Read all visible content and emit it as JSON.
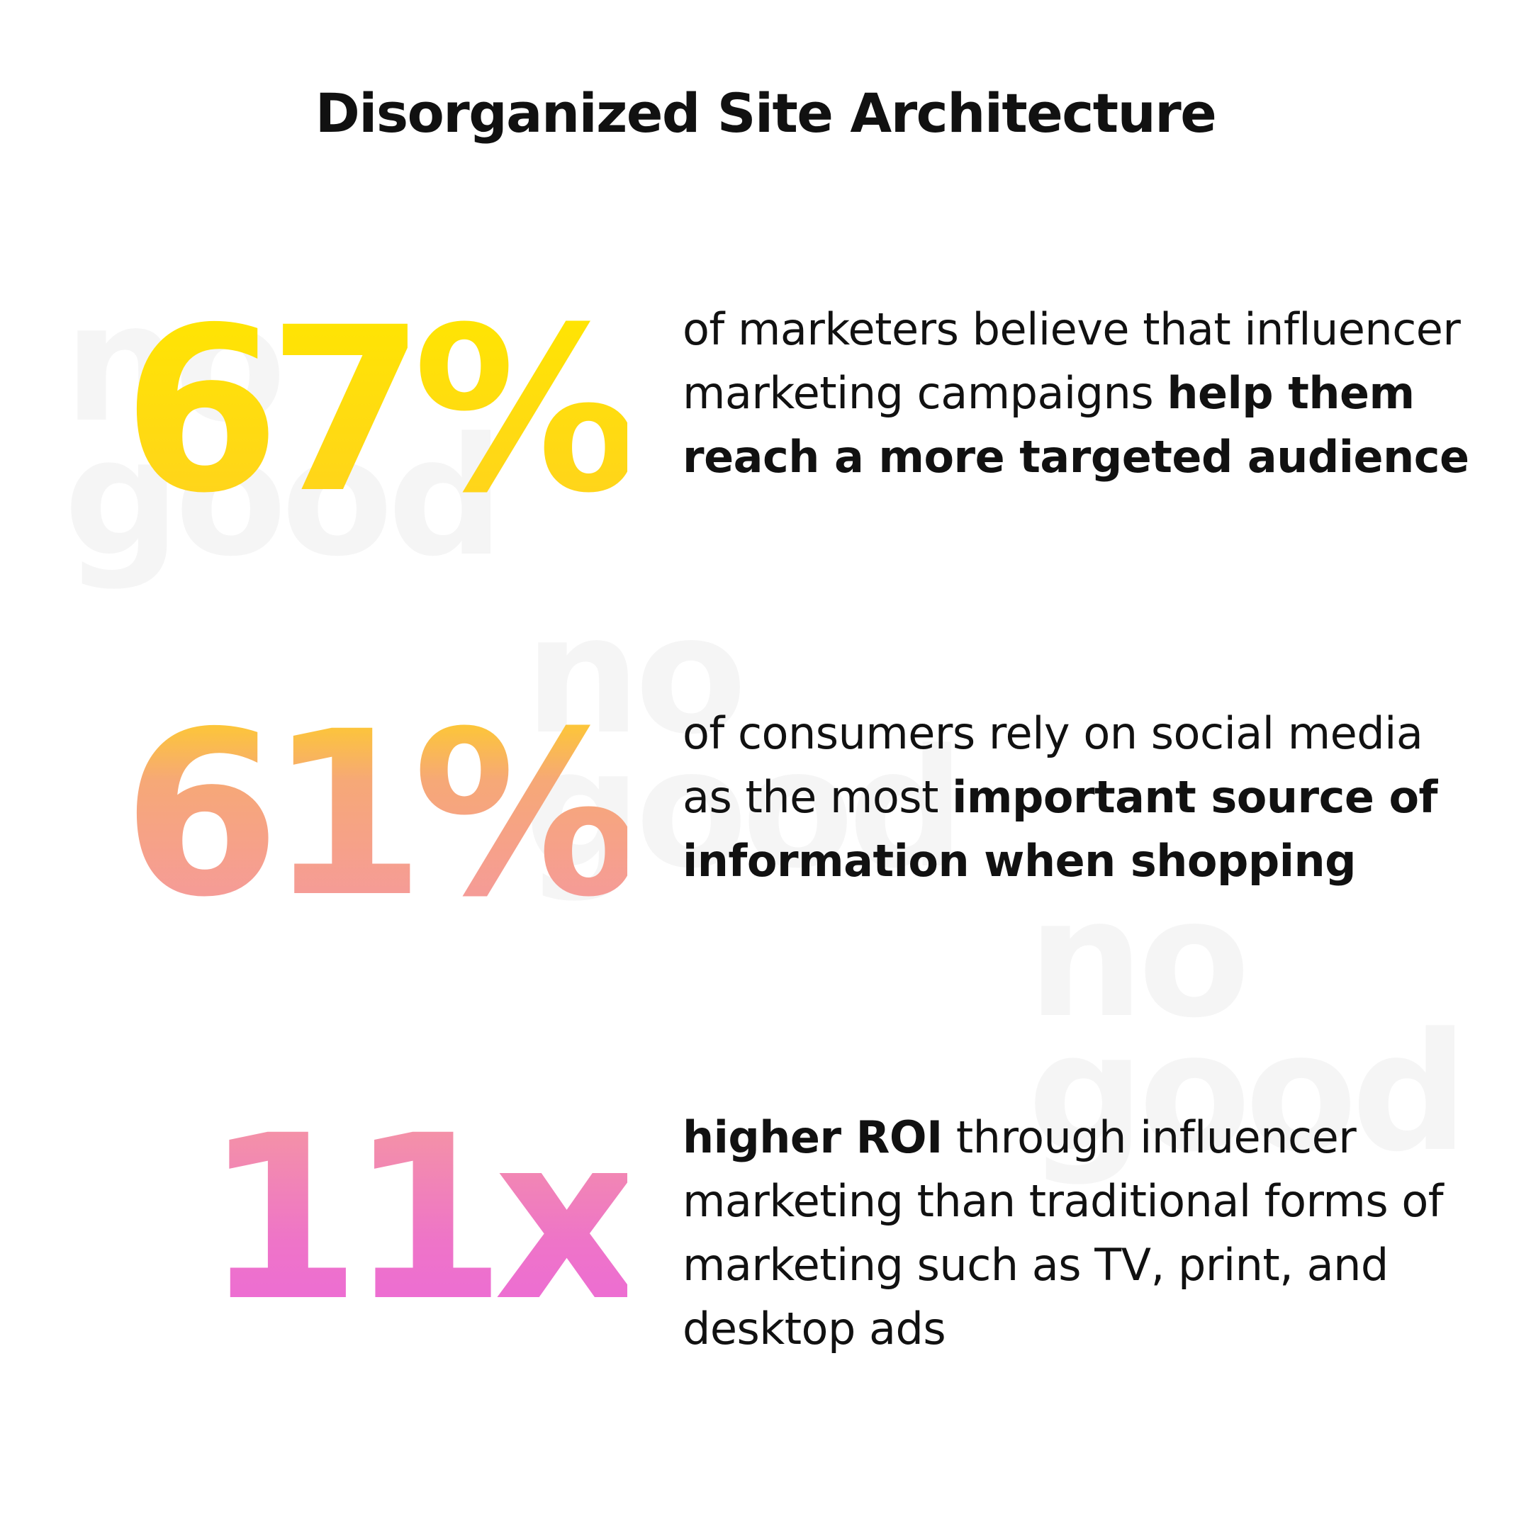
{
  "title": "Disorganized Site Architecture",
  "watermark": {
    "line1": "no",
    "line2": "good"
  },
  "stats": [
    {
      "value": "67%",
      "desc_plain": "of marketers believe that influencer marketing campaigns ",
      "desc_bold": "help them reach a more targeted audience",
      "desc_plain_after": ""
    },
    {
      "value": "61%",
      "desc_plain": "of consumers rely on social media as the most ",
      "desc_bold": "important source of information when shopping",
      "desc_plain_after": ""
    },
    {
      "value": "11x",
      "desc_bold_first": "higher ROI",
      "desc_plain": " through influencer marketing than traditional forms of marketing such as TV, print, and desktop ads"
    }
  ],
  "colors": {
    "text": "#111111",
    "yellow": "#ffe600",
    "orange": "#f6a877",
    "pink": "#ec6ad8",
    "watermark": "#f5f5f5"
  }
}
